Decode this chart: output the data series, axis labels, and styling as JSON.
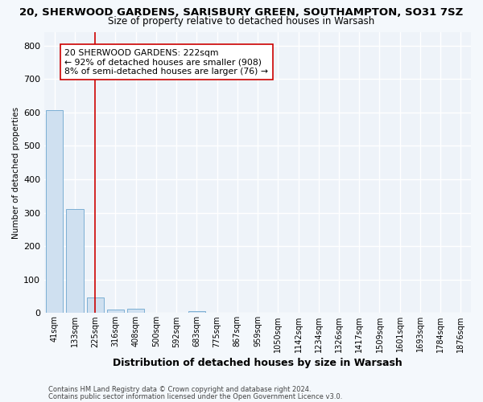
{
  "title1": "20, SHERWOOD GARDENS, SARISBURY GREEN, SOUTHAMPTON, SO31 7SZ",
  "title2": "Size of property relative to detached houses in Warsash",
  "xlabel": "Distribution of detached houses by size in Warsash",
  "ylabel": "Number of detached properties",
  "bar_labels": [
    "41sqm",
    "133sqm",
    "225sqm",
    "316sqm",
    "408sqm",
    "500sqm",
    "592sqm",
    "683sqm",
    "775sqm",
    "867sqm",
    "959sqm",
    "1050sqm",
    "1142sqm",
    "1234sqm",
    "1326sqm",
    "1417sqm",
    "1509sqm",
    "1601sqm",
    "1693sqm",
    "1784sqm",
    "1876sqm"
  ],
  "bar_values": [
    608,
    310,
    47,
    10,
    12,
    0,
    0,
    5,
    0,
    0,
    0,
    0,
    0,
    0,
    0,
    0,
    0,
    0,
    0,
    0,
    0
  ],
  "bar_color": "#cfe0f0",
  "bar_edge_color": "#7bafd4",
  "vline_x": 2.0,
  "vline_color": "#cc0000",
  "ylim": [
    0,
    840
  ],
  "yticks": [
    0,
    100,
    200,
    300,
    400,
    500,
    600,
    700,
    800
  ],
  "annotation_line1": "20 SHERWOOD GARDENS: 222sqm",
  "annotation_line2": "← 92% of detached houses are smaller (908)",
  "annotation_line3": "8% of semi-detached houses are larger (76) →",
  "footnote1": "Contains HM Land Registry data © Crown copyright and database right 2024.",
  "footnote2": "Contains public sector information licensed under the Open Government Licence v3.0.",
  "bg_color": "#f4f8fc",
  "plot_bg_color": "#eef3f9",
  "grid_color": "#ffffff",
  "title1_fontsize": 9.5,
  "title2_fontsize": 8.5,
  "xlabel_fontsize": 9,
  "ylabel_fontsize": 7.5,
  "tick_fontsize": 7,
  "annotation_fontsize": 7.8,
  "footnote_fontsize": 6
}
